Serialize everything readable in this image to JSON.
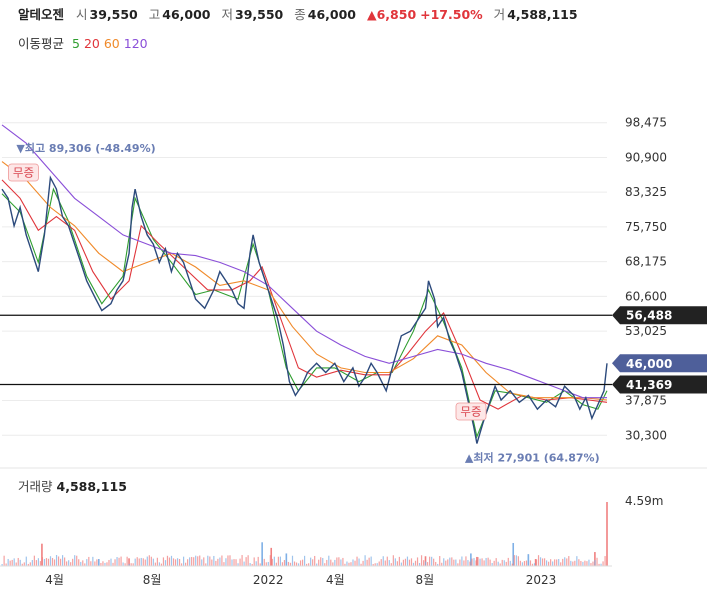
{
  "header": {
    "stock_name": "알테오젠",
    "open_label": "시",
    "open": "39,550",
    "high_label": "고",
    "high": "46,000",
    "low_label": "저",
    "low": "39,550",
    "close_label": "종",
    "close": "46,000",
    "change": "▲6,850",
    "change_pct": "+17.50%",
    "volume_label": "거",
    "volume": "4,588,115"
  },
  "moving_average": {
    "label": "이동평균",
    "periods": [
      {
        "label": "5",
        "color": "#2f9e2f"
      },
      {
        "label": "20",
        "color": "#e0353b"
      },
      {
        "label": "60",
        "color": "#f08a2a"
      },
      {
        "label": "120",
        "color": "#8a4fd8"
      }
    ]
  },
  "chart_data": {
    "type": "line",
    "y_ticks": [
      "98,475",
      "90,900",
      "83,325",
      "75,750",
      "68,175",
      "60,600",
      "53,025",
      "37,875",
      "30,300"
    ],
    "ylim": [
      22725,
      106050
    ],
    "x_ticks": [
      {
        "label": "4월",
        "t": 0.087
      },
      {
        "label": "8월",
        "t": 0.248
      },
      {
        "label": "2022",
        "t": 0.44
      },
      {
        "label": "4월",
        "t": 0.551
      },
      {
        "label": "8월",
        "t": 0.699
      },
      {
        "label": "2023",
        "t": 0.891
      }
    ],
    "price_series": {
      "color": "#2c4a7c",
      "points": [
        [
          0,
          84000
        ],
        [
          0.01,
          82000
        ],
        [
          0.02,
          76000
        ],
        [
          0.03,
          80000
        ],
        [
          0.04,
          74000
        ],
        [
          0.05,
          70000
        ],
        [
          0.06,
          66000
        ],
        [
          0.07,
          74000
        ],
        [
          0.08,
          86500
        ],
        [
          0.09,
          84000
        ],
        [
          0.1,
          78000
        ],
        [
          0.11,
          76000
        ],
        [
          0.12,
          72000
        ],
        [
          0.13,
          68000
        ],
        [
          0.14,
          64000
        ],
        [
          0.155,
          60000
        ],
        [
          0.165,
          57500
        ],
        [
          0.18,
          59000
        ],
        [
          0.19,
          62000
        ],
        [
          0.2,
          64000
        ],
        [
          0.21,
          70000
        ],
        [
          0.215,
          80000
        ],
        [
          0.22,
          84000
        ],
        [
          0.23,
          78000
        ],
        [
          0.24,
          74000
        ],
        [
          0.25,
          72000
        ],
        [
          0.26,
          68000
        ],
        [
          0.27,
          71000
        ],
        [
          0.28,
          66000
        ],
        [
          0.29,
          70000
        ],
        [
          0.3,
          68000
        ],
        [
          0.31,
          64000
        ],
        [
          0.32,
          60000
        ],
        [
          0.335,
          58000
        ],
        [
          0.35,
          62000
        ],
        [
          0.36,
          66000
        ],
        [
          0.37,
          64000
        ],
        [
          0.38,
          62000
        ],
        [
          0.39,
          59000
        ],
        [
          0.4,
          58000
        ],
        [
          0.41,
          70000
        ],
        [
          0.415,
          74000
        ],
        [
          0.425,
          68000
        ],
        [
          0.44,
          62000
        ],
        [
          0.455,
          56000
        ],
        [
          0.465,
          50000
        ],
        [
          0.475,
          42000
        ],
        [
          0.485,
          39000
        ],
        [
          0.495,
          41000
        ],
        [
          0.505,
          44000
        ],
        [
          0.52,
          46000
        ],
        [
          0.535,
          44000
        ],
        [
          0.55,
          46000
        ],
        [
          0.565,
          42000
        ],
        [
          0.58,
          45000
        ],
        [
          0.59,
          41000
        ],
        [
          0.6,
          43000
        ],
        [
          0.61,
          46000
        ],
        [
          0.62,
          44000
        ],
        [
          0.635,
          40000
        ],
        [
          0.645,
          45000
        ],
        [
          0.66,
          52000
        ],
        [
          0.675,
          53000
        ],
        [
          0.69,
          56000
        ],
        [
          0.7,
          58000
        ],
        [
          0.705,
          64000
        ],
        [
          0.715,
          60000
        ],
        [
          0.72,
          54000
        ],
        [
          0.73,
          56000
        ],
        [
          0.74,
          51000
        ],
        [
          0.75,
          48000
        ],
        [
          0.76,
          44000
        ],
        [
          0.77,
          38000
        ],
        [
          0.78,
          32000
        ],
        [
          0.785,
          28500
        ],
        [
          0.795,
          33000
        ],
        [
          0.805,
          37000
        ],
        [
          0.815,
          41000
        ],
        [
          0.825,
          38000
        ],
        [
          0.84,
          40000
        ],
        [
          0.855,
          37500
        ],
        [
          0.87,
          39000
        ],
        [
          0.885,
          36000
        ],
        [
          0.9,
          38000
        ],
        [
          0.915,
          36500
        ],
        [
          0.93,
          41000
        ],
        [
          0.945,
          39000
        ],
        [
          0.955,
          36000
        ],
        [
          0.965,
          38500
        ],
        [
          0.975,
          34000
        ],
        [
          0.985,
          37000
        ],
        [
          0.995,
          40000
        ],
        [
          1,
          46000
        ]
      ]
    },
    "ma_series": [
      {
        "period": "5",
        "color": "#2f9e2f",
        "points": [
          [
            0,
            83000
          ],
          [
            0.03,
            79000
          ],
          [
            0.06,
            68000
          ],
          [
            0.085,
            84000
          ],
          [
            0.11,
            77000
          ],
          [
            0.14,
            65000
          ],
          [
            0.165,
            59000
          ],
          [
            0.2,
            65000
          ],
          [
            0.22,
            82000
          ],
          [
            0.25,
            73000
          ],
          [
            0.28,
            68000
          ],
          [
            0.32,
            61000
          ],
          [
            0.35,
            62000
          ],
          [
            0.39,
            60000
          ],
          [
            0.415,
            72000
          ],
          [
            0.44,
            62000
          ],
          [
            0.47,
            45000
          ],
          [
            0.49,
            40000
          ],
          [
            0.52,
            45000
          ],
          [
            0.55,
            45000
          ],
          [
            0.59,
            42000
          ],
          [
            0.62,
            44000
          ],
          [
            0.645,
            44000
          ],
          [
            0.68,
            53000
          ],
          [
            0.705,
            62000
          ],
          [
            0.73,
            55000
          ],
          [
            0.76,
            45000
          ],
          [
            0.785,
            30000
          ],
          [
            0.815,
            40000
          ],
          [
            0.84,
            39500
          ],
          [
            0.87,
            38500
          ],
          [
            0.9,
            37500
          ],
          [
            0.93,
            40000
          ],
          [
            0.96,
            37000
          ],
          [
            0.985,
            36000
          ],
          [
            1,
            40000
          ]
        ]
      },
      {
        "period": "20",
        "color": "#e0353b",
        "points": [
          [
            0,
            86000
          ],
          [
            0.03,
            82000
          ],
          [
            0.06,
            75000
          ],
          [
            0.09,
            78000
          ],
          [
            0.12,
            75000
          ],
          [
            0.15,
            66000
          ],
          [
            0.18,
            60000
          ],
          [
            0.21,
            64000
          ],
          [
            0.23,
            76000
          ],
          [
            0.26,
            72000
          ],
          [
            0.3,
            67000
          ],
          [
            0.34,
            62000
          ],
          [
            0.38,
            62000
          ],
          [
            0.41,
            64000
          ],
          [
            0.43,
            67000
          ],
          [
            0.46,
            56000
          ],
          [
            0.49,
            45000
          ],
          [
            0.52,
            43000
          ],
          [
            0.56,
            44500
          ],
          [
            0.6,
            43500
          ],
          [
            0.64,
            43500
          ],
          [
            0.67,
            48000
          ],
          [
            0.7,
            53000
          ],
          [
            0.73,
            57000
          ],
          [
            0.76,
            48000
          ],
          [
            0.79,
            38000
          ],
          [
            0.82,
            36000
          ],
          [
            0.86,
            39000
          ],
          [
            0.9,
            38000
          ],
          [
            0.94,
            38500
          ],
          [
            0.97,
            38000
          ],
          [
            1,
            37500
          ]
        ]
      },
      {
        "period": "60",
        "color": "#f08a2a",
        "points": [
          [
            0,
            90000
          ],
          [
            0.04,
            86000
          ],
          [
            0.08,
            80000
          ],
          [
            0.12,
            76000
          ],
          [
            0.16,
            70000
          ],
          [
            0.2,
            66000
          ],
          [
            0.24,
            68000
          ],
          [
            0.28,
            70000
          ],
          [
            0.32,
            67000
          ],
          [
            0.36,
            63000
          ],
          [
            0.4,
            64000
          ],
          [
            0.44,
            62000
          ],
          [
            0.48,
            54000
          ],
          [
            0.52,
            48000
          ],
          [
            0.56,
            45000
          ],
          [
            0.6,
            44000
          ],
          [
            0.64,
            44000
          ],
          [
            0.68,
            47000
          ],
          [
            0.72,
            52000
          ],
          [
            0.76,
            50000
          ],
          [
            0.8,
            44000
          ],
          [
            0.84,
            39500
          ],
          [
            0.88,
            38500
          ],
          [
            0.92,
            38500
          ],
          [
            0.96,
            38500
          ],
          [
            1,
            38000
          ]
        ]
      },
      {
        "period": "120",
        "color": "#8a4fd8",
        "points": [
          [
            0,
            98000
          ],
          [
            0.04,
            94000
          ],
          [
            0.08,
            88000
          ],
          [
            0.12,
            82000
          ],
          [
            0.16,
            78000
          ],
          [
            0.2,
            74000
          ],
          [
            0.24,
            72000
          ],
          [
            0.28,
            70000
          ],
          [
            0.32,
            69500
          ],
          [
            0.36,
            68000
          ],
          [
            0.4,
            66000
          ],
          [
            0.44,
            63000
          ],
          [
            0.48,
            58000
          ],
          [
            0.52,
            53000
          ],
          [
            0.56,
            50000
          ],
          [
            0.6,
            47500
          ],
          [
            0.64,
            46000
          ],
          [
            0.68,
            47500
          ],
          [
            0.72,
            49000
          ],
          [
            0.76,
            48000
          ],
          [
            0.8,
            46000
          ],
          [
            0.84,
            44500
          ],
          [
            0.88,
            42500
          ],
          [
            0.92,
            40500
          ],
          [
            0.96,
            38500
          ],
          [
            1,
            38500
          ]
        ]
      }
    ],
    "horizontal_lines": [
      {
        "value": 56488,
        "label": "56,488",
        "tag_color": "#222222"
      },
      {
        "value": 41369,
        "label": "41,369",
        "tag_color": "#222222"
      }
    ],
    "current_price": {
      "value": 46000,
      "label": "46,000",
      "tag_color": "#4e5f9a"
    },
    "high_annotation": {
      "label": "▼최고 89,306 (-48.49%)",
      "t": 0.08,
      "value": 89306
    },
    "low_annotation": {
      "label": "▲최저 27,901 (64.87%)",
      "t": 0.785,
      "value": 27901
    },
    "events": [
      {
        "label": "무증",
        "t": 0.09
      },
      {
        "label": "무증",
        "t": 0.8
      }
    ],
    "volume": {
      "label": "거래량",
      "value": "4,588,115",
      "y_tick": "4.59m",
      "max": 4588115,
      "up_color": "#f08080",
      "down_color": "#7fb0e6",
      "spikes": [
        {
          "t": 0.066,
          "value": 1600000,
          "dir": "up"
        },
        {
          "t": 0.16,
          "value": 500000,
          "dir": "down"
        },
        {
          "t": 0.21,
          "value": 550000,
          "dir": "up"
        },
        {
          "t": 0.43,
          "value": 1700000,
          "dir": "down"
        },
        {
          "t": 0.445,
          "value": 1300000,
          "dir": "up"
        },
        {
          "t": 0.47,
          "value": 900000,
          "dir": "down"
        },
        {
          "t": 0.7,
          "value": 700000,
          "dir": "up"
        },
        {
          "t": 0.775,
          "value": 900000,
          "dir": "down"
        },
        {
          "t": 0.785,
          "value": 650000,
          "dir": "up"
        },
        {
          "t": 0.845,
          "value": 1650000,
          "dir": "down"
        },
        {
          "t": 0.87,
          "value": 850000,
          "dir": "down"
        },
        {
          "t": 0.882,
          "value": 500000,
          "dir": "up"
        },
        {
          "t": 0.98,
          "value": 1000000,
          "dir": "up"
        },
        {
          "t": 1.0,
          "value": 4588115,
          "dir": "up"
        }
      ]
    }
  }
}
